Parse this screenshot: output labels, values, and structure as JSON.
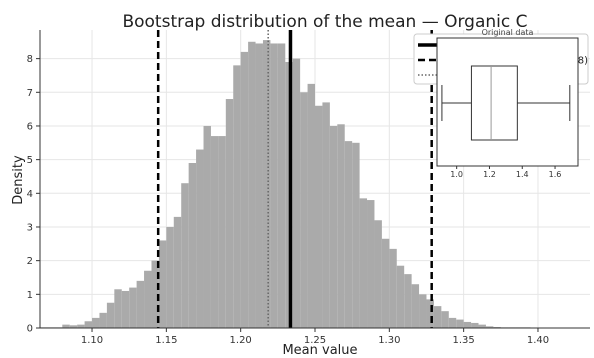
{
  "chart_data": {
    "type": "bar",
    "title": "Bootstrap distribution of the mean — Organic C",
    "xlabel": "Mean value",
    "ylabel": "Density",
    "xlim": [
      1.065,
      1.435
    ],
    "ylim": [
      0,
      8.85
    ],
    "xticks": [
      1.1,
      1.15,
      1.2,
      1.25,
      1.3,
      1.35,
      1.4
    ],
    "xtick_labels": [
      "1.10",
      "1.15",
      "1.20",
      "1.25",
      "1.30",
      "1.35",
      "1.40"
    ],
    "yticks": [
      0,
      1,
      2,
      3,
      4,
      5,
      6,
      7,
      8
    ],
    "grid": true,
    "bar_color": "#aaaaaa",
    "bins": {
      "start": 1.065,
      "width": 0.005,
      "density": [
        0.02,
        0.02,
        0.02,
        0.1,
        0.08,
        0.1,
        0.2,
        0.3,
        0.45,
        0.75,
        1.15,
        1.1,
        1.2,
        1.4,
        1.7,
        2.0,
        2.6,
        3.0,
        3.3,
        4.3,
        4.9,
        5.3,
        6.0,
        5.7,
        5.7,
        6.8,
        7.8,
        8.2,
        8.5,
        8.45,
        8.55,
        8.45,
        8.45,
        7.9,
        8.0,
        7.0,
        7.25,
        6.6,
        6.7,
        6.0,
        6.05,
        5.55,
        5.5,
        3.85,
        3.8,
        3.2,
        2.65,
        2.35,
        1.85,
        1.6,
        1.3,
        1.0,
        0.85,
        0.65,
        0.5,
        0.3,
        0.25,
        0.18,
        0.15,
        0.1,
        0.05,
        0.03,
        0.02,
        0.02,
        0.02,
        0.02,
        0.01,
        0.01,
        0.01,
        0.01,
        0.01,
        0.01,
        0.01,
        0.01
      ]
    },
    "reference_lines": [
      {
        "x": 1.2335,
        "style": "solid",
        "color": "#000000",
        "width": 3.5
      },
      {
        "x": 1.2185,
        "style": "dotted",
        "color": "#666666",
        "width": 1.5
      },
      {
        "x": 1.1445,
        "style": "dashed",
        "color": "#000000",
        "width": 2.5
      },
      {
        "x": 1.3285,
        "style": "dashed",
        "color": "#000000",
        "width": 2.5
      }
    ],
    "legend": {
      "placement": "top-right",
      "entries": [
        {
          "style": "solid",
          "label": ""
        },
        {
          "style": "dashed",
          "label": "28)"
        },
        {
          "style": "dotted",
          "label": ""
        }
      ]
    },
    "inset": {
      "type": "boxplot",
      "title": "Original data",
      "xlim": [
        0.88,
        1.74
      ],
      "xticks": [
        1.0,
        1.2,
        1.4,
        1.6
      ],
      "xtick_labels": [
        "1.0",
        "1.2",
        "1.4",
        "1.6"
      ],
      "whisker_low": 0.91,
      "q1": 1.09,
      "median": 1.21,
      "q3": 1.37,
      "whisker_high": 1.69
    }
  }
}
